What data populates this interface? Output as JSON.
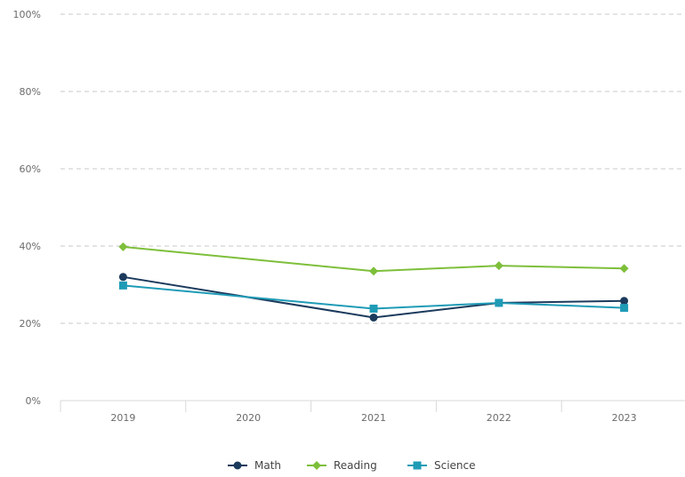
{
  "chart_data": {
    "type": "line",
    "categories": [
      "2019",
      "2020",
      "2021",
      "2022",
      "2023"
    ],
    "y_ticks": [
      "0%",
      "20%",
      "40%",
      "60%",
      "80%",
      "100%"
    ],
    "ylim": [
      0,
      100
    ],
    "grid": true,
    "legend_position": "bottom",
    "series": [
      {
        "name": "Math",
        "color": "#1b3a5c",
        "marker": "circle",
        "values": [
          32,
          null,
          21.5,
          25.3,
          25.8
        ]
      },
      {
        "name": "Reading",
        "color": "#7dbf3a",
        "marker": "diamond",
        "values": [
          39.8,
          null,
          33.5,
          34.9,
          34.2
        ]
      },
      {
        "name": "Science",
        "color": "#1f9bb6",
        "marker": "square",
        "values": [
          29.8,
          null,
          23.8,
          25.3,
          24
        ]
      }
    ]
  }
}
